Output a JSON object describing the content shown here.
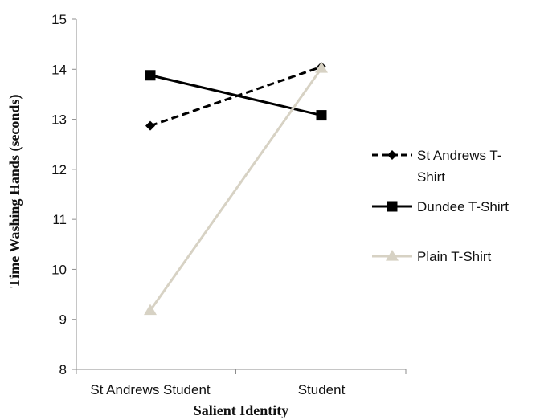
{
  "chart_data": {
    "type": "line",
    "title": "",
    "xlabel": "Salient Identity",
    "ylabel": "Time Washing Hands (seconds)",
    "categories": [
      "St Andrews Student",
      "Student"
    ],
    "ylim": [
      8,
      15
    ],
    "yticks": [
      "8",
      "9",
      "10",
      "11",
      "12",
      "13",
      "14",
      "15"
    ],
    "grid": false,
    "legend_position": "right",
    "series": [
      {
        "name": "St Andrews T-Shirt",
        "name_lines": [
          "St Andrews T-",
          "Shirt"
        ],
        "values": [
          12.87,
          14.05
        ],
        "color": "#000000",
        "dash": true,
        "marker": "diamond"
      },
      {
        "name": "Dundee T-Shirt",
        "name_lines": [
          "Dundee T-Shirt"
        ],
        "values": [
          13.88,
          13.08
        ],
        "color": "#000000",
        "dash": false,
        "marker": "square"
      },
      {
        "name": "Plain T-Shirt",
        "name_lines": [
          "Plain T-Shirt"
        ],
        "values": [
          9.18,
          14.02
        ],
        "color": "#d7d2c4",
        "dash": false,
        "marker": "triangle"
      }
    ]
  }
}
